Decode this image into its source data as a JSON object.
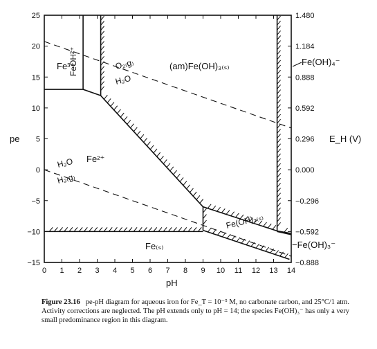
{
  "figure": {
    "x_axis_label": "pH",
    "left_axis_label": "pe",
    "right_axis_label": "E_H (V)",
    "x_ticks": [
      "0",
      "1",
      "2",
      "3",
      "4",
      "5",
      "6",
      "7",
      "8",
      "9",
      "10",
      "11",
      "12",
      "13",
      "14"
    ],
    "left_ticks": [
      "25",
      "20",
      "15",
      "10",
      "5",
      "0",
      "−5",
      "−10",
      "−15"
    ],
    "right_ticks": [
      "1.480",
      "1.184",
      "0.888",
      "0.592",
      "0.296",
      "0.000",
      "−0.296",
      "−0.592",
      "−0.888"
    ],
    "species": {
      "fe3": "Fe³⁺",
      "feoh2": "FeOH²⁺",
      "am_feoh3": "(am)Fe(OH)₃₍ₛ₎",
      "fe2": "Fe²⁺",
      "fe_s": "Fe₍ₛ₎",
      "feoh2_s": "Fe(OH)₂₍ₛ₎",
      "feoh4": "Fe(OH)₄⁻",
      "feoh3_minus": "−Fe(OH)₃⁻",
      "o2_top": "O₂₍g₎",
      "o2_bottom": "H₂O",
      "h2_top": "H₂O",
      "h2_bottom": "H₂₍g₎"
    }
  },
  "chart_data": {
    "type": "line",
    "xlabel": "pH",
    "ylabel": "pe",
    "y2label": "E_H (V)",
    "xlim": [
      0,
      14
    ],
    "ylim": [
      -15,
      25
    ],
    "y2lim": [
      -0.888,
      1.48
    ],
    "series": [
      {
        "x": [
          0,
          14
        ],
        "y": [
          20.75,
          6.75
        ]
      },
      {
        "x": [
          0,
          14
        ],
        "y": [
          0,
          -14
        ]
      },
      {
        "x": [
          0,
          2.2,
          3.2
        ],
        "y": [
          13,
          13,
          12
        ]
      },
      {
        "x": [
          2.2,
          2.2
        ],
        "y": [
          25,
          13
        ]
      },
      {
        "x": [
          3.2,
          3.2
        ],
        "y": [
          25,
          12
        ]
      },
      {
        "x": [
          3.2,
          9,
          9
        ],
        "y": [
          12,
          -6,
          -9.8
        ]
      },
      {
        "x": [
          0,
          9
        ],
        "y": [
          -10,
          -10
        ]
      },
      {
        "x": [
          9,
          13.2,
          14
        ],
        "y": [
          -6,
          -9.9,
          -10.3
        ]
      },
      {
        "x": [
          9,
          13.9
        ],
        "y": [
          -9.8,
          -14.5
        ]
      },
      {
        "x": [
          13.2,
          13.2
        ],
        "y": [
          25,
          -10
        ]
      },
      {
        "x": [
          13.2,
          14
        ],
        "y": [
          -10,
          -10.5
        ]
      }
    ]
  },
  "caption": {
    "label": "Figure 23.16",
    "text": "pe-pH diagram for aqueous iron for Fe_T = 10⁻⁵ M, no carbonate carbon, and 25°C/1 atm. Activity corrections are neglected. The pH extends only to pH = 14; the species Fe(OH)₃⁻ has only a very small predominance region in this diagram."
  }
}
